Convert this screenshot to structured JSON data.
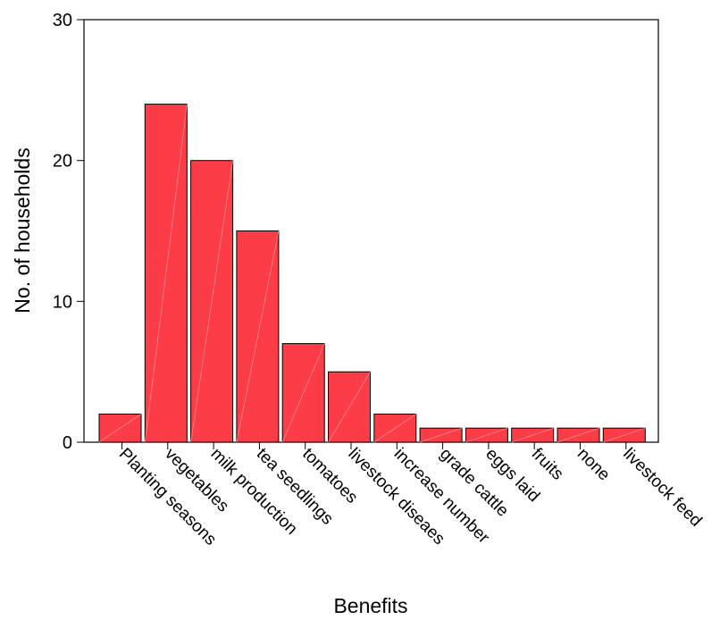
{
  "chart_data": {
    "type": "bar",
    "title": "",
    "xlabel": "Benefits",
    "ylabel": "No. of households",
    "ylim": [
      0,
      30
    ],
    "yticks": [
      0,
      10,
      20,
      30
    ],
    "grid": false,
    "bar_color": "#fc3c46",
    "bar_edge_color": "#000000",
    "categories": [
      "Planting seasons",
      "vegetables",
      "milk production",
      "tea seedlings",
      "tomatoes",
      "livestock diseaes",
      "increase number",
      "grade cattle",
      "eggs laid",
      "fruits",
      "none",
      "livestock feed"
    ],
    "values": [
      2,
      24,
      20,
      15,
      7,
      5,
      2,
      1,
      1,
      1,
      1,
      1
    ]
  }
}
